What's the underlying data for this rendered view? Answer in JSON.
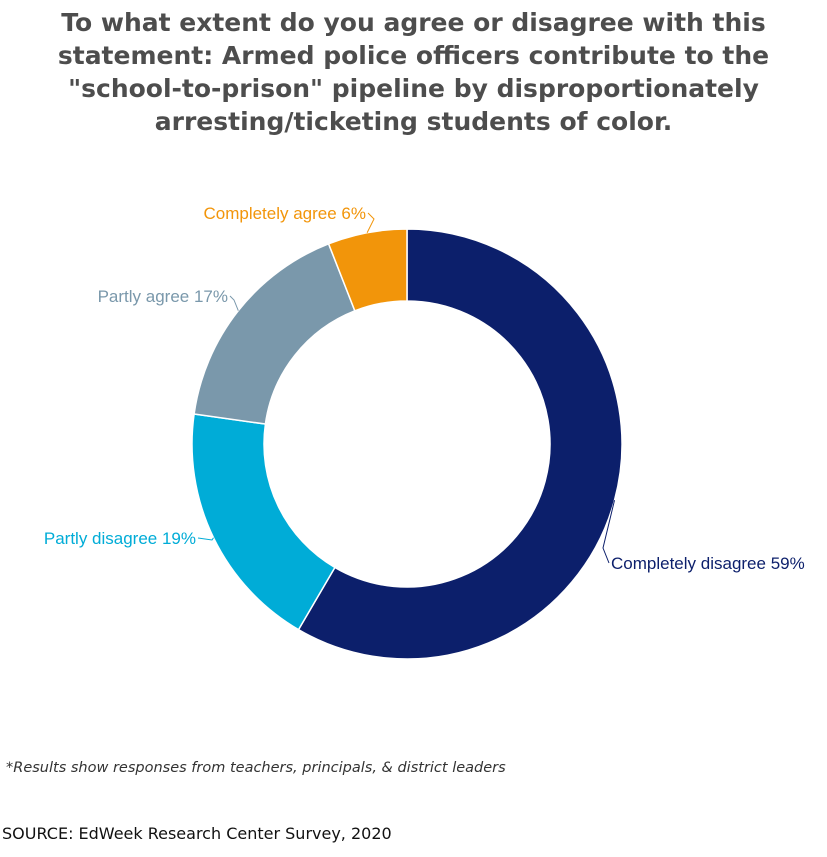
{
  "title": "To what extent do you agree or disagree with this statement: Armed police officers contribute to the \"school-to-prison\" pipeline by disproportionately arresting/ticketing students of color.",
  "footnote": "*Results show responses from teachers, principals, & district leaders",
  "source": "SOURCE: EdWeek Research Center Survey, 2020",
  "chart_data": {
    "type": "pie",
    "subtype": "donut",
    "title": "To what extent do you agree or disagree with this statement: Armed police officers contribute to the \"school-to-prison\" pipeline by disproportionately arresting/ticketing students of color.",
    "slices": [
      {
        "label": "Completely disagree",
        "value": 59,
        "display": "Completely disagree 59%",
        "color": "#0c1f6b"
      },
      {
        "label": "Partly disagree",
        "value": 19,
        "display": "Partly disagree 19%",
        "color": "#00acd7"
      },
      {
        "label": "Partly agree",
        "value": 17,
        "display": "Partly agree 17%",
        "color": "#7a98ab"
      },
      {
        "label": "Completely agree",
        "value": 6,
        "display": "Completely agree 6%",
        "color": "#f2950a"
      }
    ]
  }
}
